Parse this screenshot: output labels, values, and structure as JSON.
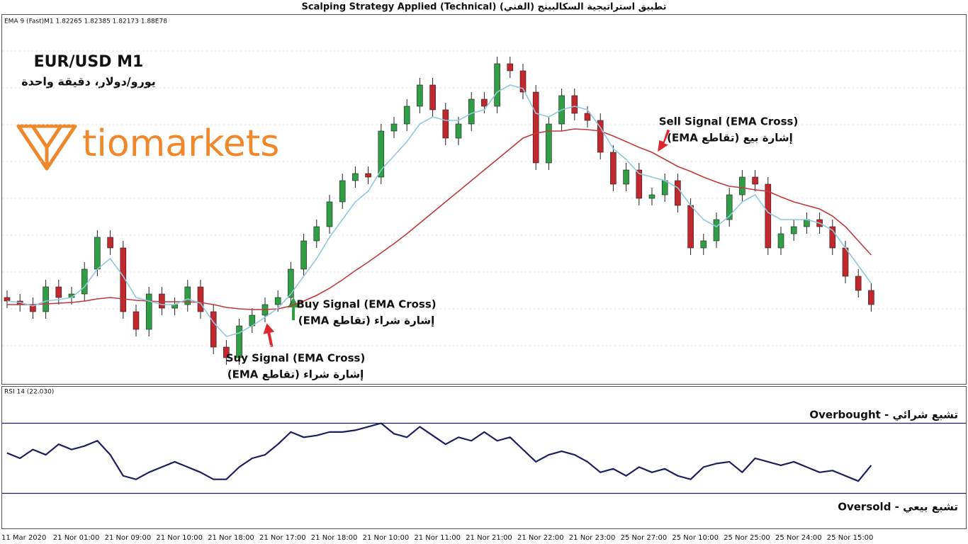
{
  "chart_data": [
    {
      "type": "candlestick",
      "title": "Scalping Strategy Applied (Technical)  تطبيق استراتيجية السكالبينج (الفني)",
      "header": "EMA 9 (Fast)M1 1.82265 1.82385 1.82173 1.88E78",
      "symbol": "EUR/USD M1",
      "symbol_subtitle": "يورو/دولار، دقيقة واحدة",
      "brand": "tiomarkets",
      "categories": [
        "11 Mar 2020",
        null,
        null,
        null,
        "21 Nor 01:00",
        null,
        null,
        null,
        "21 Nor 09:00",
        null,
        null,
        null,
        "21 Nor 10:00",
        null,
        null,
        null,
        "21 Nor 18:00",
        null,
        null,
        null,
        "21 Nor 17:00",
        null,
        null,
        null,
        "21 Nor 18:00",
        null,
        null,
        null,
        "21 Nor 10:00",
        null,
        null,
        null,
        "21 Nor 11:00",
        null,
        null,
        null,
        "21 Nor 21:00",
        null,
        null,
        null,
        "21 Nor 22:00",
        null,
        null,
        null,
        "21 Nor 23:00",
        null,
        null,
        null,
        "25 Nor 27:00",
        null,
        null,
        null,
        "25 Nor 10:00",
        null,
        null,
        null,
        "25 Nor 25:00",
        null,
        null,
        null,
        "25 Nor 24:00",
        null,
        null,
        null,
        "25 Nor 15:00",
        null,
        null,
        null
      ],
      "open": [
        120,
        115,
        110,
        100,
        135,
        120,
        125,
        160,
        205,
        190,
        100,
        75,
        125,
        105,
        110,
        135,
        100,
        50,
        35,
        80,
        95,
        110,
        120,
        160,
        200,
        220,
        255,
        285,
        295,
        290,
        355,
        365,
        390,
        420,
        385,
        345,
        365,
        400,
        390,
        450,
        440,
        410,
        310,
        365,
        405,
        380,
        370,
        325,
        280,
        300,
        260,
        265,
        285,
        250,
        190,
        200,
        230,
        265,
        290,
        280,
        190,
        210,
        220,
        230,
        220,
        190,
        150,
        130
      ],
      "high": [
        130,
        125,
        120,
        145,
        145,
        135,
        170,
        215,
        215,
        200,
        110,
        135,
        135,
        120,
        145,
        145,
        110,
        60,
        90,
        105,
        120,
        130,
        170,
        210,
        230,
        265,
        295,
        305,
        305,
        365,
        375,
        400,
        430,
        430,
        395,
        375,
        410,
        410,
        460,
        460,
        450,
        420,
        375,
        415,
        415,
        390,
        380,
        335,
        310,
        310,
        275,
        295,
        295,
        260,
        210,
        240,
        275,
        300,
        300,
        290,
        220,
        230,
        240,
        240,
        230,
        200,
        160,
        140
      ],
      "low": [
        105,
        100,
        90,
        90,
        110,
        110,
        115,
        150,
        180,
        90,
        65,
        65,
        95,
        95,
        100,
        90,
        40,
        25,
        25,
        70,
        85,
        100,
        110,
        150,
        190,
        210,
        245,
        275,
        280,
        280,
        345,
        355,
        380,
        375,
        335,
        335,
        355,
        380,
        380,
        430,
        400,
        300,
        300,
        355,
        370,
        360,
        315,
        270,
        270,
        250,
        250,
        255,
        240,
        180,
        180,
        190,
        220,
        255,
        270,
        180,
        180,
        200,
        210,
        210,
        180,
        140,
        120,
        100
      ],
      "close": [
        115,
        110,
        100,
        135,
        120,
        125,
        160,
        205,
        190,
        100,
        75,
        125,
        105,
        110,
        135,
        100,
        50,
        35,
        80,
        95,
        110,
        120,
        160,
        200,
        220,
        255,
        285,
        295,
        290,
        355,
        365,
        390,
        420,
        385,
        345,
        365,
        400,
        390,
        450,
        440,
        410,
        310,
        365,
        405,
        380,
        370,
        325,
        280,
        300,
        260,
        265,
        285,
        250,
        190,
        200,
        230,
        265,
        290,
        280,
        190,
        210,
        220,
        230,
        220,
        190,
        150,
        130,
        110
      ],
      "up_color": "#2f9e44",
      "down_color": "#c1272d",
      "ema_fast": {
        "color": "#8fc9e0",
        "values": [
          115,
          113,
          108,
          115,
          117,
          120,
          135,
          160,
          175,
          150,
          120,
          115,
          110,
          110,
          118,
          112,
          85,
          65,
          70,
          80,
          92,
          105,
          125,
          150,
          175,
          205,
          230,
          255,
          270,
          300,
          320,
          340,
          365,
          375,
          370,
          370,
          380,
          385,
          410,
          420,
          415,
          380,
          375,
          385,
          390,
          385,
          360,
          330,
          315,
          295,
          290,
          285,
          275,
          250,
          230,
          220,
          235,
          255,
          265,
          240,
          230,
          230,
          230,
          225,
          215,
          190,
          165,
          140
        ]
      },
      "ema_slow": {
        "color": "#c0393b",
        "values": [
          110,
          110,
          110,
          111,
          112,
          113,
          115,
          118,
          120,
          118,
          116,
          115,
          114,
          114,
          114,
          113,
          110,
          106,
          104,
          103,
          103,
          104,
          108,
          115,
          123,
          133,
          145,
          158,
          170,
          183,
          196,
          210,
          225,
          240,
          255,
          270,
          285,
          300,
          315,
          330,
          345,
          352,
          355,
          355,
          358,
          357,
          355,
          348,
          340,
          332,
          325,
          315,
          305,
          298,
          290,
          283,
          277,
          275,
          272,
          270,
          262,
          255,
          250,
          245,
          235,
          220,
          200,
          180
        ]
      },
      "ylim": [
        0,
        510
      ],
      "annotations": [
        {
          "title": "Buy Signal (EMA Cross)",
          "subtitle": "إشارة شراء (تقاطع EMA)"
        },
        {
          "title": "Suy Signal (EMA Cross)",
          "subtitle": "إشارة شراء (تقاطع EMA)"
        },
        {
          "title": "Sell Signal (EMA Cross)",
          "subtitle": "إشارة بيع (تقاطع EMA)"
        }
      ]
    },
    {
      "type": "line",
      "header": "RSI 14 (22.030)",
      "color": "#1b1f5e",
      "values": [
        53,
        50,
        55,
        52,
        58,
        55,
        57,
        60,
        52,
        40,
        38,
        42,
        45,
        48,
        45,
        42,
        38,
        38,
        45,
        50,
        52,
        58,
        65,
        62,
        63,
        65,
        65,
        66,
        68,
        70,
        64,
        62,
        68,
        63,
        58,
        62,
        60,
        65,
        60,
        62,
        55,
        48,
        52,
        54,
        52,
        48,
        42,
        44,
        40,
        45,
        42,
        44,
        40,
        38,
        45,
        47,
        48,
        42,
        50,
        48,
        46,
        48,
        45,
        42,
        43,
        40,
        37,
        46
      ],
      "ylim": [
        10,
        90
      ],
      "yticks": [
        30,
        70
      ],
      "level_color": "#1b1f5e",
      "annotations": [
        "Overbought - تشبع شرائي",
        "Oversold - تشبع بيعي"
      ]
    }
  ]
}
